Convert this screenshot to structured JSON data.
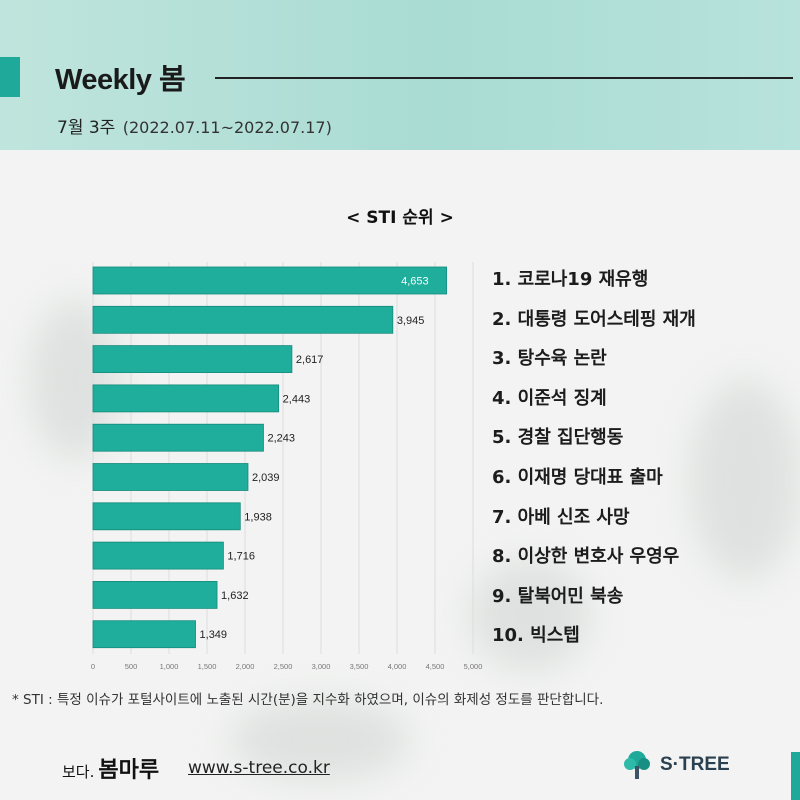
{
  "header": {
    "title": "Weekly 봄",
    "week_label": "7월 3주",
    "date_range": "(2022.07.11~2022.07.17)"
  },
  "chart_data": {
    "type": "bar",
    "orientation": "horizontal",
    "title": "< STI 순위 >",
    "categories": [
      "1",
      "2",
      "3",
      "4",
      "5",
      "6",
      "7",
      "8",
      "9",
      "10"
    ],
    "values": [
      4653,
      3945,
      2617,
      2443,
      2243,
      2039,
      1938,
      1716,
      1632,
      1349
    ],
    "value_labels": [
      "4,653",
      "3,945",
      "2,617",
      "2,443",
      "2,243",
      "2,039",
      "1,938",
      "1,716",
      "1,632",
      "1,349"
    ],
    "xlim": [
      0,
      5000
    ],
    "x_ticks": [
      "0",
      "500",
      "1,000",
      "1,500",
      "2,000",
      "2,500",
      "3,000",
      "3,500",
      "4,000",
      "4,500",
      "5,000"
    ],
    "grid": true,
    "bar_color": "#1fae9c"
  },
  "ranking": [
    "1. 코로나19 재유행",
    "2. 대통령 도어스테핑 재개",
    "3. 탕수육 논란",
    "4. 이준석 징계",
    "5. 경찰 집단행동",
    "6. 이재명 당대표 출마",
    "7. 아베 신조 사망",
    "8. 이상한 변호사 우영우",
    "9. 탈북어민 북송",
    "10. 빅스텝"
  ],
  "note": "* STI : 특정 이슈가 포털사이트에 노출된 시간(분)을 지수화 하였으며, 이슈의 화제성 정도를 판단합니다.",
  "footer": {
    "logo_small": "보다.",
    "logo_main": "봄마루",
    "url": "www.s-tree.co.kr",
    "brand": "S·TREE"
  },
  "colors": {
    "accent": "#1fa99a",
    "header_bg": "#b3e0d8"
  }
}
